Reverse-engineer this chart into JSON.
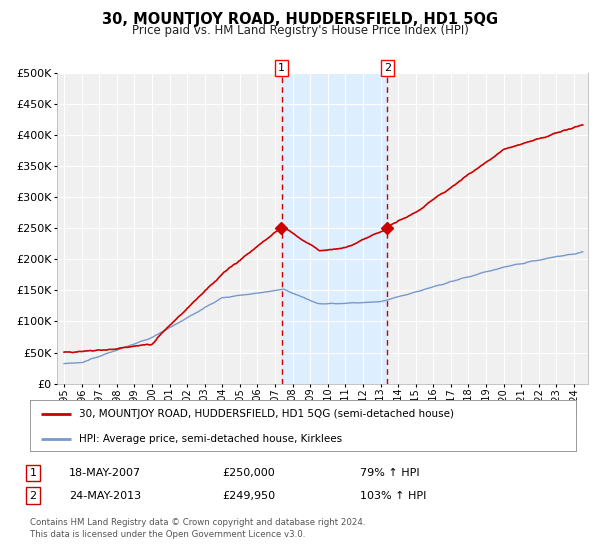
{
  "title": "30, MOUNTJOY ROAD, HUDDERSFIELD, HD1 5QG",
  "subtitle": "Price paid vs. HM Land Registry's House Price Index (HPI)",
  "red_label": "30, MOUNTJOY ROAD, HUDDERSFIELD, HD1 5QG (semi-detached house)",
  "blue_label": "HPI: Average price, semi-detached house, Kirklees",
  "annotation1": {
    "num": "1",
    "date": "18-MAY-2007",
    "price": "£250,000",
    "hpi": "79% ↑ HPI"
  },
  "annotation2": {
    "num": "2",
    "date": "24-MAY-2013",
    "price": "£249,950",
    "hpi": "103% ↑ HPI"
  },
  "footnote": "Contains HM Land Registry data © Crown copyright and database right 2024.\nThis data is licensed under the Open Government Licence v3.0.",
  "sale1_year": 2007.38,
  "sale2_year": 2013.39,
  "ylim": [
    0,
    500000
  ],
  "xlim_start": 1994.6,
  "xlim_end": 2024.8,
  "bg_color": "#ffffff",
  "plot_bg_color": "#f0f0f0",
  "grid_color": "#ffffff",
  "red_color": "#cc0000",
  "blue_color": "#7799cc",
  "shade_color": "#ddeeff",
  "dashed_color": "#cc0000"
}
